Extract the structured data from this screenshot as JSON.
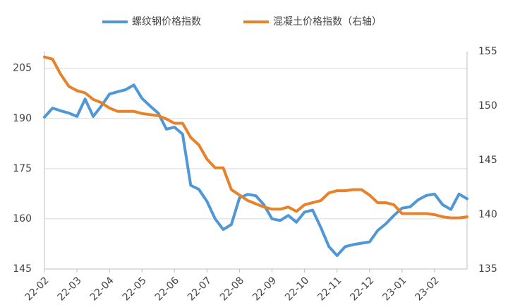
{
  "chart_data": {
    "type": "line",
    "categories": [
      "22-02",
      null,
      null,
      null,
      "22-03",
      null,
      null,
      null,
      "22-04",
      null,
      null,
      null,
      "22-05",
      null,
      null,
      null,
      "22-06",
      null,
      null,
      null,
      "22-07",
      null,
      null,
      null,
      "22-08",
      null,
      null,
      null,
      "22-09",
      null,
      null,
      null,
      "22-10",
      null,
      null,
      null,
      "22-11",
      null,
      null,
      null,
      "22-12",
      null,
      null,
      null,
      "23-01",
      null,
      null,
      null,
      "23-02",
      null,
      null,
      null,
      null
    ],
    "series": [
      {
        "name": "螺纹钢价格指数",
        "color": "#4f97d6",
        "axis": "y",
        "values": [
          190.4,
          193.1,
          192.3,
          191.6,
          190.6,
          195.8,
          190.6,
          193.7,
          197.3,
          198,
          198.6,
          200,
          196,
          193.7,
          191.6,
          186.8,
          187.4,
          185.3,
          170,
          168.8,
          165.2,
          160,
          156.8,
          158.3,
          166.3,
          167.3,
          166.9,
          164.2,
          160,
          159.5,
          161,
          159,
          162,
          162.6,
          157.4,
          151.7,
          149,
          151.7,
          152.3,
          152.7,
          153.1,
          156.5,
          158.5,
          161,
          163.2,
          163.6,
          165.7,
          167,
          167.4,
          164.2,
          162.8,
          167.4,
          166
        ]
      },
      {
        "name": "混凝土价格指数（右轴）",
        "color": "#e8822a",
        "axis": "y2",
        "values": [
          154.5,
          154.3,
          152.9,
          151.8,
          151.4,
          151.2,
          150.6,
          150.3,
          149.8,
          149.5,
          149.5,
          149.5,
          149.3,
          149.2,
          149.1,
          148.8,
          148.4,
          148.4,
          147.1,
          146.4,
          145.1,
          144.3,
          144.3,
          142.3,
          141.8,
          141.3,
          141,
          140.7,
          140.5,
          140.5,
          140.7,
          140.3,
          140.9,
          141.1,
          141.3,
          142,
          142.2,
          142.2,
          142.3,
          142.3,
          141.8,
          141.1,
          141.1,
          140.9,
          140.1,
          140.1,
          140.1,
          140.1,
          140,
          139.8,
          139.7,
          139.7,
          139.8
        ]
      }
    ],
    "ylim": [
      145,
      210
    ],
    "yticks": [
      145,
      160,
      175,
      190,
      205
    ],
    "y2lim": [
      135,
      155
    ],
    "y2ticks": [
      135,
      140,
      145,
      150,
      155
    ],
    "grid": true
  }
}
